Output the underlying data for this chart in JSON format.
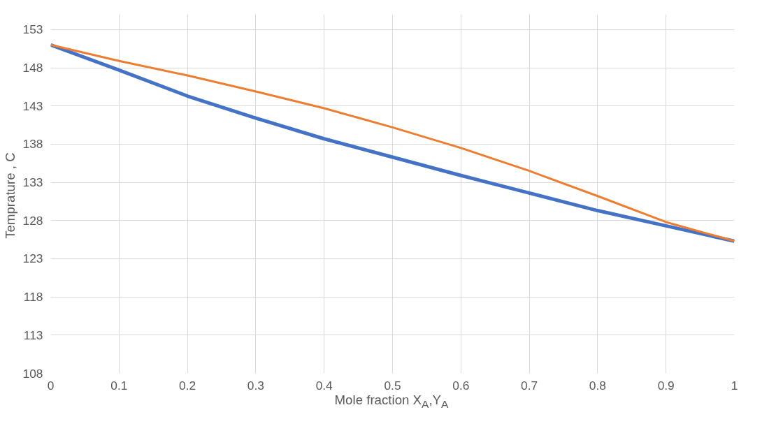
{
  "chart_data": {
    "type": "line",
    "xlabel": "Mole fraction X$_{A}$,Y$_{A}$",
    "ylabel": "Temprature  , C",
    "x": [
      0,
      0.1,
      0.2,
      0.3,
      0.4,
      0.5,
      0.6,
      0.7,
      0.8,
      0.9,
      1
    ],
    "series": [
      {
        "color": "#4472c4",
        "values": [
          151,
          147.7,
          144.3,
          141.4,
          138.7,
          136.3,
          133.9,
          131.6,
          129.3,
          127.3,
          125.3
        ]
      },
      {
        "color": "#ed7d31",
        "values": [
          151,
          148.9,
          147.0,
          144.9,
          142.7,
          140.2,
          137.5,
          134.5,
          131.2,
          127.8,
          125.3
        ]
      }
    ],
    "xlim": [
      0,
      1
    ],
    "ylim": [
      108,
      155
    ],
    "xticks": [
      0,
      0.1,
      0.2,
      0.3,
      0.4,
      0.5,
      0.6,
      0.7,
      0.8,
      0.9,
      1
    ],
    "yticks": [
      108,
      113,
      118,
      123,
      128,
      133,
      138,
      143,
      148,
      153
    ],
    "grid": true,
    "marker": "none",
    "line_style": "solid"
  }
}
